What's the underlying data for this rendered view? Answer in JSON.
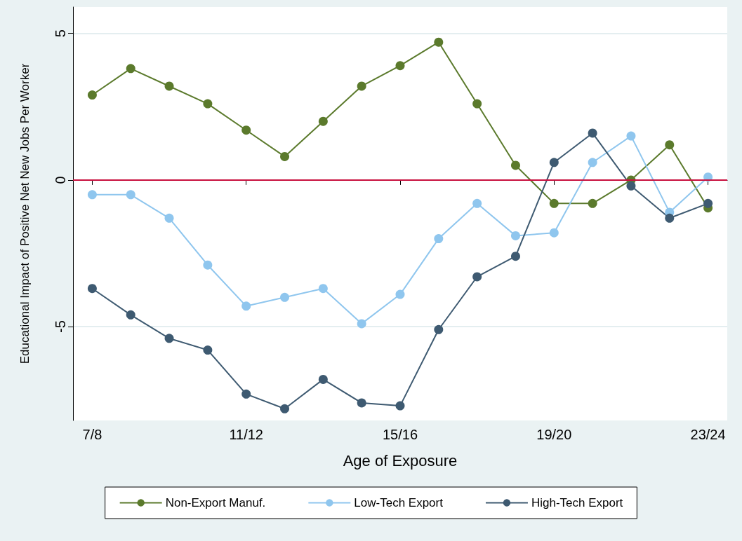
{
  "chart_data": {
    "type": "line",
    "xlabel": "Age of Exposure",
    "ylabel": "Educational Impact of Positive Net New Jobs Per Worker",
    "categories": [
      "7/8",
      null,
      null,
      null,
      "11/12",
      null,
      null,
      null,
      "15/16",
      null,
      null,
      null,
      "19/20",
      null,
      null,
      null,
      "23/24"
    ],
    "series": [
      {
        "name": "Non-Export Manuf.",
        "color": "#5b7a2c",
        "values": [
          2.9,
          3.8,
          3.2,
          2.6,
          1.7,
          0.8,
          2.0,
          3.2,
          3.9,
          4.7,
          2.6,
          0.5,
          -0.8,
          -0.8,
          0.0,
          1.2,
          -0.95
        ]
      },
      {
        "name": "Low-Tech Export",
        "color": "#8fc6ee",
        "values": [
          -0.5,
          -0.5,
          -1.3,
          -2.9,
          -4.3,
          -4.0,
          -3.7,
          -4.9,
          -3.9,
          -2.0,
          -0.8,
          -1.9,
          -1.8,
          0.6,
          1.5,
          -1.1,
          0.1
        ]
      },
      {
        "name": "High-Tech Export",
        "color": "#3e5a71",
        "values": [
          -3.7,
          -4.6,
          -5.4,
          -5.8,
          -7.3,
          -7.8,
          -6.8,
          -7.6,
          -7.7,
          -5.1,
          -3.3,
          -2.6,
          0.6,
          1.6,
          -0.2,
          -1.3,
          -0.8
        ]
      }
    ],
    "ylim": [
      -8.2,
      5.9
    ],
    "yticks": [
      -5,
      0,
      5
    ],
    "grid": "y",
    "marker": "circle",
    "line_style": "solid",
    "legend": "bottom",
    "ref_lines": [
      {
        "axis": "y",
        "value": 0,
        "color": "#c8103e"
      }
    ]
  }
}
